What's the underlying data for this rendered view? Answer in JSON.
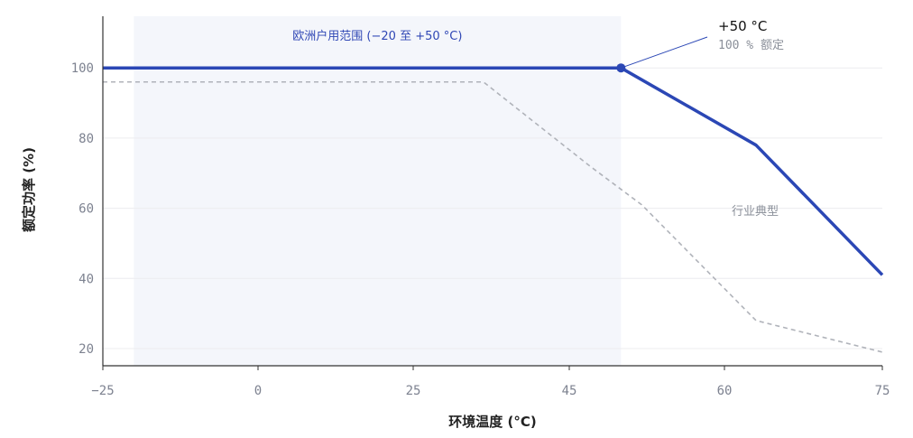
{
  "chart_data": {
    "type": "line",
    "xlabel": "环境温度 (°C)",
    "ylabel": "额定功率 (%)",
    "x_ticks": [
      -25,
      0,
      25,
      45,
      60,
      75
    ],
    "y_ticks": [
      20,
      40,
      60,
      80,
      100
    ],
    "x_ticks_labels": [
      "−25",
      "0",
      "25",
      "45",
      "60",
      "75"
    ],
    "y_ticks_labels": [
      "20",
      "40",
      "60",
      "80",
      "100"
    ],
    "grid": "horizontal",
    "band": {
      "from": -20,
      "to": 50,
      "label": "欧洲户用范围 (−20 至 +50 °C)"
    },
    "series": [
      {
        "name": "",
        "style": "solid",
        "color": "#2b47b5",
        "x": [
          -25,
          50,
          63,
          75
        ],
        "y": [
          100,
          100,
          78,
          41
        ]
      },
      {
        "name": "行业典型",
        "style": "dashed",
        "color": "#b0b3ba",
        "x": [
          -25,
          34,
          47,
          52,
          63,
          75
        ],
        "y": [
          96,
          96,
          72,
          61,
          28,
          19
        ]
      }
    ],
    "annotation": {
      "x": 50,
      "y": 100,
      "title": "+50 °C",
      "subtitle": "100 % 额定"
    }
  },
  "colors": {
    "band": "#f4f6fb",
    "grid": "#ececef",
    "axis": "#333333"
  }
}
